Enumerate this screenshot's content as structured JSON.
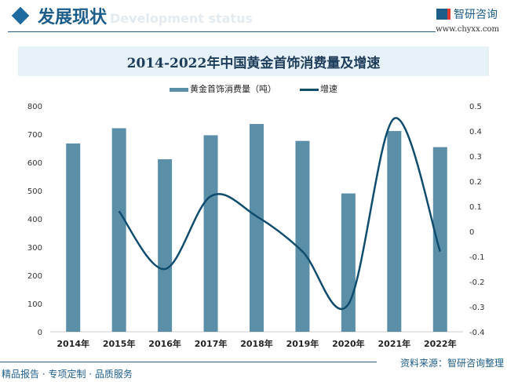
{
  "header": {
    "title": "发展现状",
    "ghost": "Development status"
  },
  "logo": {
    "name": "智研咨询",
    "url": "www.chyxx.com"
  },
  "footer": {
    "slogan": "精品报告 · 专项定制 · 品质服务",
    "source": "资料来源：智研咨询整理"
  },
  "colors": {
    "bar": "#5b8fa8",
    "line": "#0f4c6e"
  },
  "chart_data": {
    "type": "bar+line",
    "title": "2014-2022年中国黄金首饰消费量及增速",
    "categories": [
      "2014年",
      "2015年",
      "2016年",
      "2017年",
      "2018年",
      "2019年",
      "2020年",
      "2021年",
      "2022年"
    ],
    "series": [
      {
        "name": "黄金首饰消费量（吨）",
        "type": "bar",
        "axis": "left",
        "values": [
          667,
          721,
          611,
          696,
          736,
          676,
          490,
          711,
          654
        ]
      },
      {
        "name": "增速",
        "type": "line",
        "axis": "right",
        "values": [
          null,
          0.08,
          -0.15,
          0.14,
          0.06,
          -0.08,
          -0.29,
          0.45,
          -0.08
        ]
      }
    ],
    "ylim": [
      0,
      800
    ],
    "yticks": [
      0,
      100,
      200,
      300,
      400,
      500,
      600,
      700,
      800
    ],
    "y2lim": [
      -0.4,
      0.5
    ],
    "y2ticks": [
      "-0.4",
      "-0.3",
      "-0.2",
      "-0.1",
      "0",
      "0.1",
      "0.2",
      "0.3",
      "0.4",
      "0.5"
    ],
    "legend": "top",
    "grid": false
  }
}
